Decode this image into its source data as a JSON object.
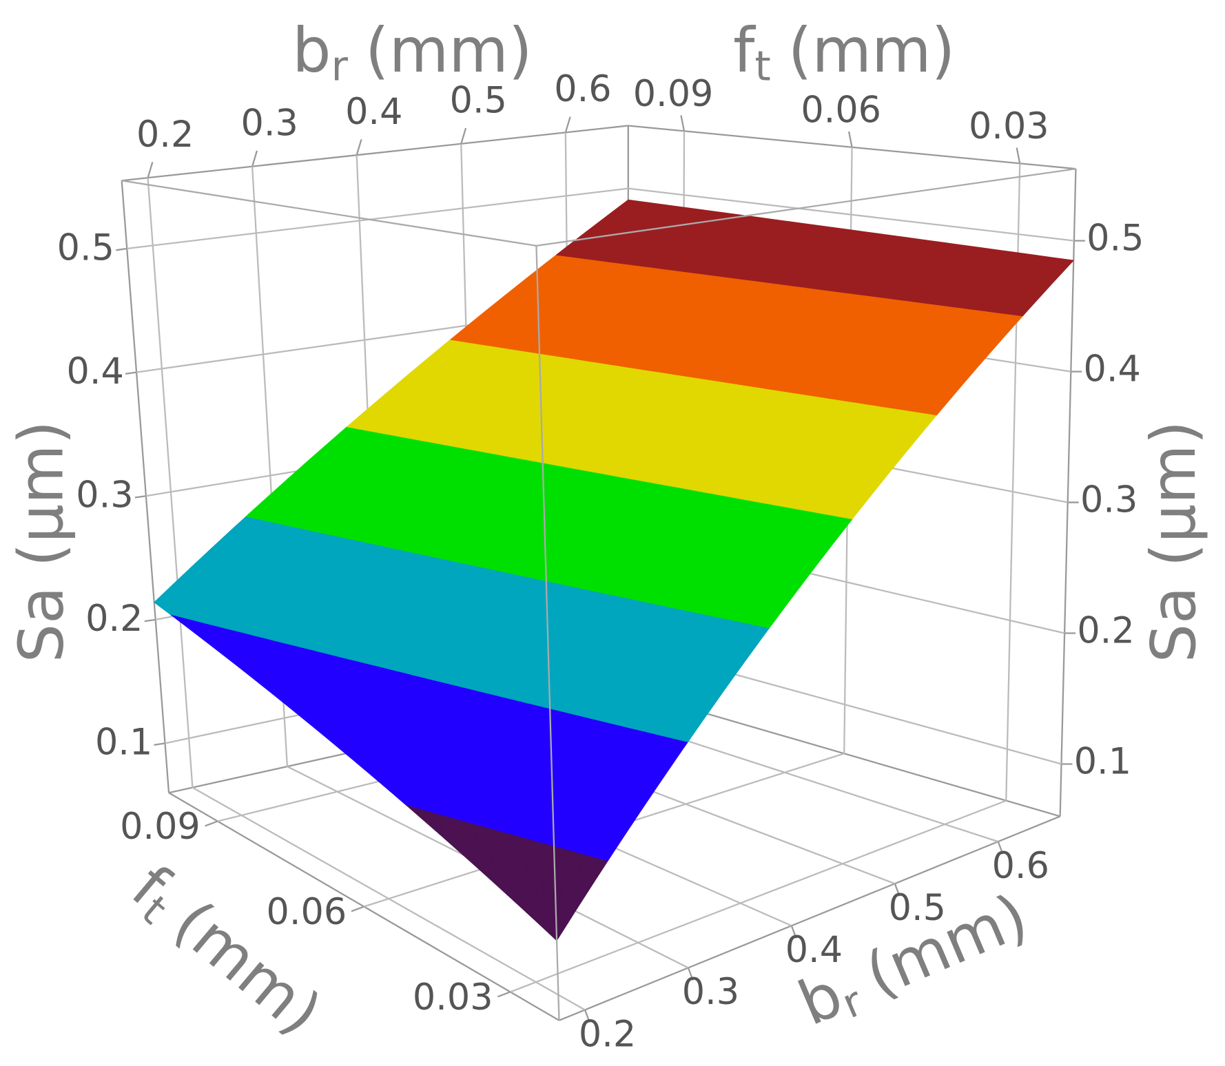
{
  "chart_data": {
    "type": "surface3d",
    "xlabel": {
      "main": "b",
      "sub": "r",
      "rest": "(mm)"
    },
    "ylabel": {
      "main": "f",
      "sub": "t",
      "rest": "(mm)"
    },
    "zlabel": "Sa (µm)",
    "xlim": [
      0.175,
      0.66
    ],
    "xticks": [
      0.2,
      0.3,
      0.4,
      0.5,
      0.6
    ],
    "ylim": [
      0.02,
      0.1
    ],
    "yticks": [
      0.03,
      0.06,
      0.09
    ],
    "zlim": [
      0.06,
      0.555
    ],
    "zticks": [
      0.1,
      0.2,
      0.3,
      0.4,
      0.5
    ],
    "surface": {
      "x": [
        0.175,
        0.66
      ],
      "y": [
        0.02,
        0.1
      ],
      "z": [
        [
          0.111,
          0.214
        ],
        [
          0.485,
          0.49
        ]
      ]
    },
    "color_levels": [
      0.15,
      0.21,
      0.27,
      0.33,
      0.39,
      0.45
    ],
    "colors": [
      "#4b1150",
      "#2200ff",
      "#00a5be",
      "#00e000",
      "#e0d800",
      "#f06000",
      "#9a1e20"
    ],
    "grid": true
  }
}
